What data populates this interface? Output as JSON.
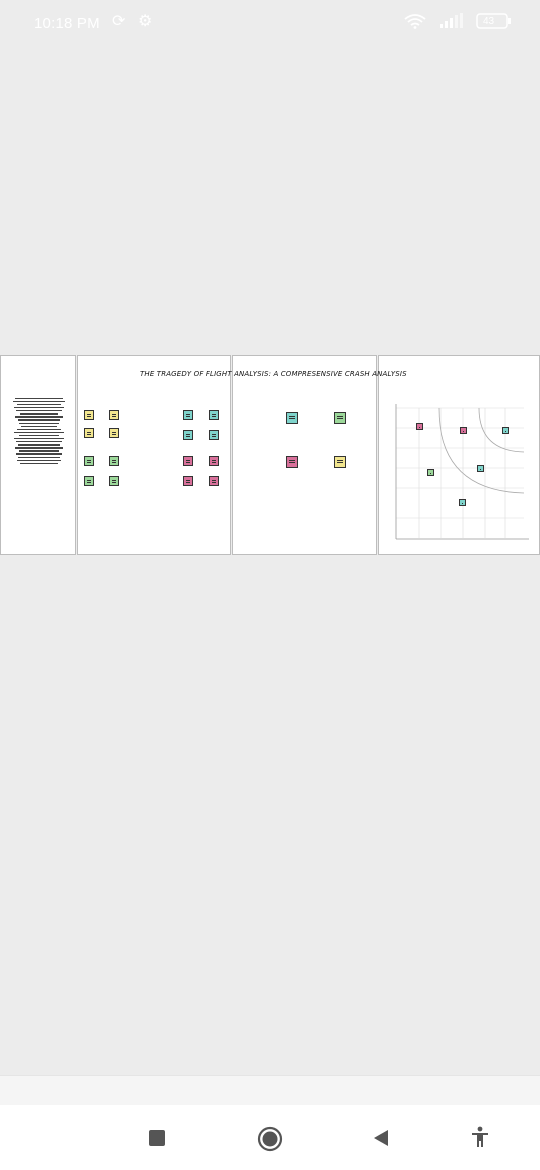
{
  "status": {
    "time": "10:18 PM",
    "battery": "43"
  },
  "canvas": {
    "title": "THE TRAGEDY OF FLIGHT ANALYSIS: A COMPRESENSIVE CRASH ANALYSIS"
  },
  "colors": {
    "yellow": "#f2e68f",
    "green": "#9cd89a",
    "teal": "#7fd4cc",
    "pink": "#d8709a",
    "accent": "#ffffff"
  },
  "nav": {
    "recent": "square-icon",
    "home": "circle-icon",
    "back": "triangle-icon",
    "accessibility": "accessibility-icon"
  }
}
